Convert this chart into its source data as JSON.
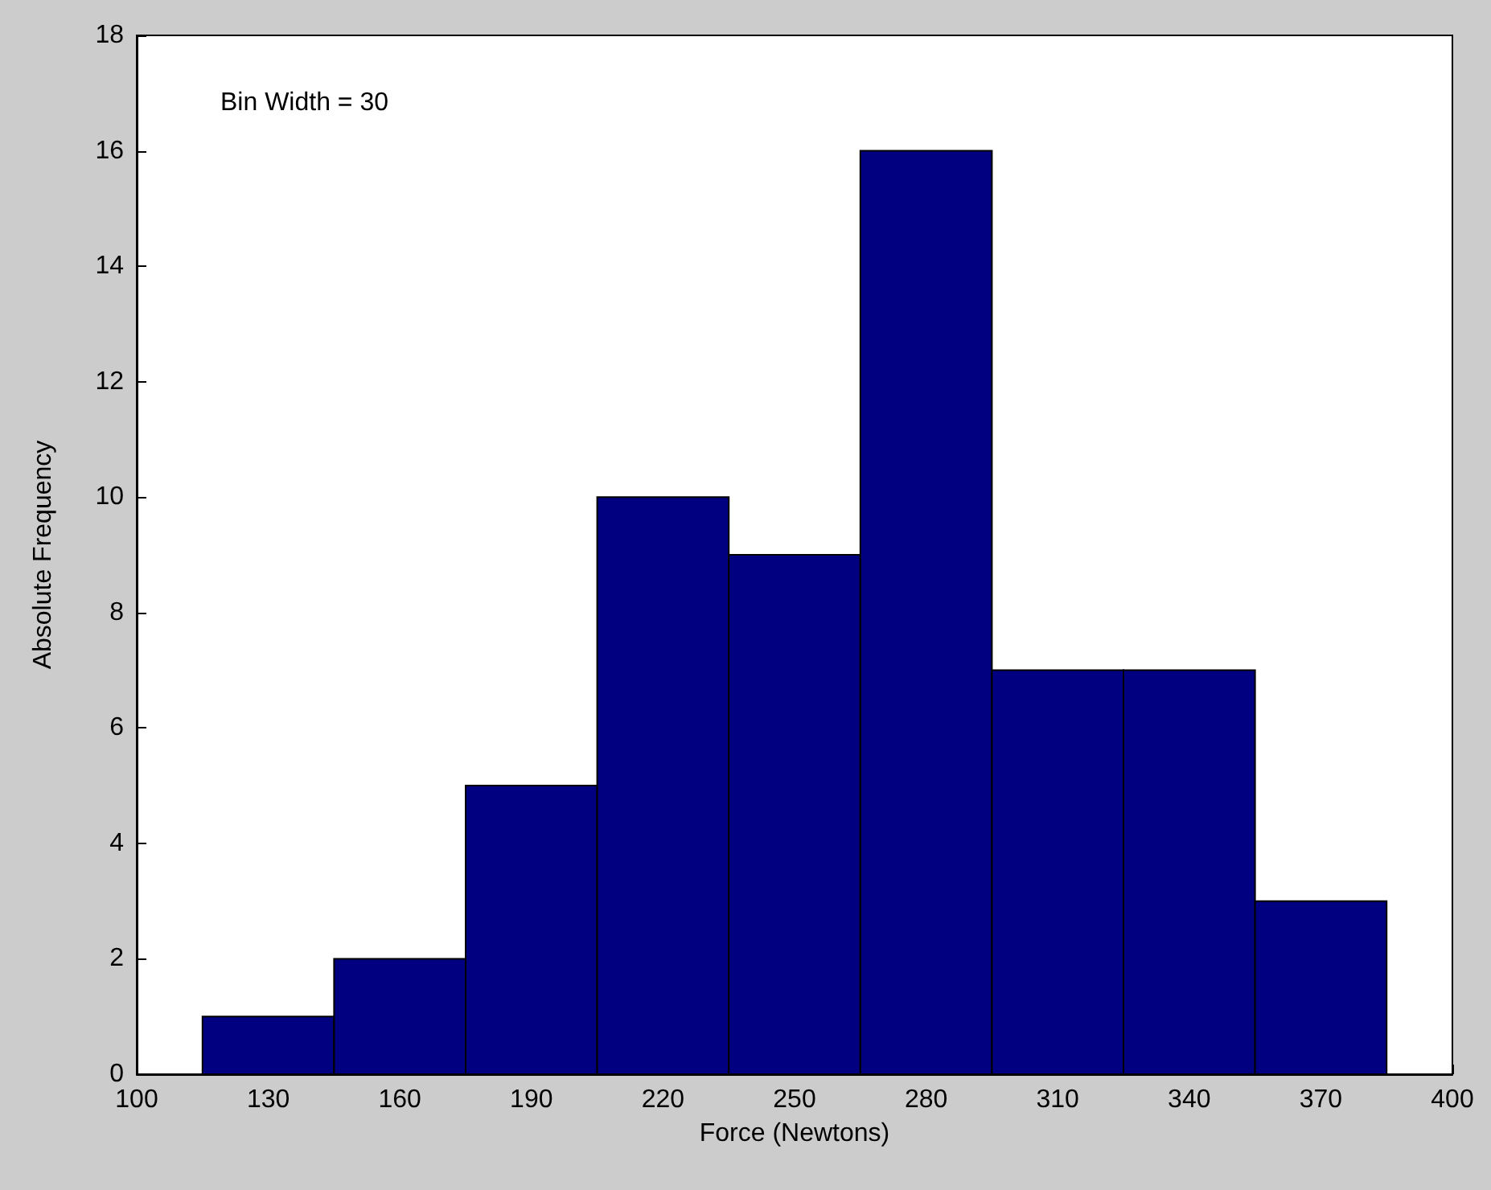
{
  "chart_data": {
    "type": "histogram",
    "xlabel": "Force (Newtons)",
    "ylabel": "Absolute Frequency",
    "annotations": [
      "Bin Width = 30"
    ],
    "bins": [
      115,
      145,
      175,
      205,
      235,
      265,
      295,
      325,
      355,
      385
    ],
    "values": [
      1,
      2,
      5,
      10,
      9,
      16,
      7,
      7,
      3
    ],
    "color": "#000080",
    "xlim": [
      100,
      400
    ],
    "xticks": [
      100,
      130,
      160,
      190,
      220,
      250,
      280,
      310,
      340,
      370,
      400
    ],
    "ylim": [
      0,
      18
    ],
    "yticks": [
      0,
      2,
      4,
      6,
      8,
      10,
      12,
      14,
      16,
      18
    ]
  }
}
